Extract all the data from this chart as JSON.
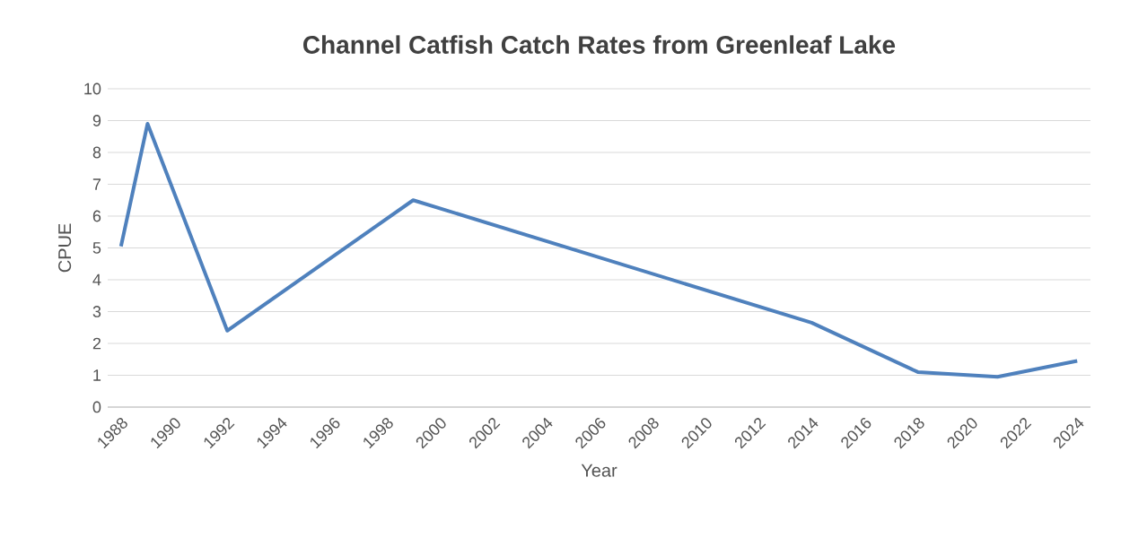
{
  "chart_data": {
    "type": "line",
    "title": "Channel Catfish Catch Rates from Greenleaf Lake",
    "xlabel": "Year",
    "ylabel": "CPUE",
    "x": [
      1988,
      1989,
      1992,
      1999,
      2014,
      2018,
      2021,
      2024
    ],
    "series": [
      {
        "color": "#4f81bd",
        "values": [
          5.05,
          8.9,
          2.4,
          6.5,
          2.65,
          1.1,
          0.95,
          1.45
        ]
      }
    ],
    "xlim": [
      1987.5,
      2024.5
    ],
    "ylim": [
      0,
      10
    ],
    "xticks": [
      1988,
      1990,
      1992,
      1994,
      1996,
      1998,
      2000,
      2002,
      2004,
      2006,
      2008,
      2010,
      2012,
      2014,
      2016,
      2018,
      2020,
      2022,
      2024
    ],
    "yticks": [
      0,
      1,
      2,
      3,
      4,
      5,
      6,
      7,
      8,
      9,
      10
    ],
    "grid": "y",
    "legend": false,
    "marker": "none",
    "line_style": "solid"
  }
}
